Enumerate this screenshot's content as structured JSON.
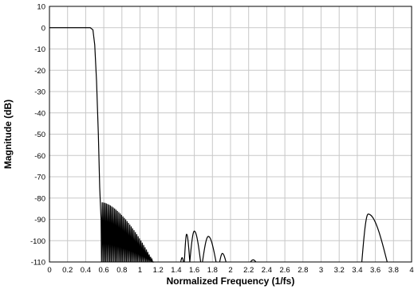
{
  "chart_data": {
    "type": "line",
    "title": "",
    "xlabel": "Normalized Frequency (1/fs)",
    "ylabel": "Magnitude (dB)",
    "xlim": [
      0,
      4
    ],
    "ylim": [
      -110,
      10
    ],
    "grid": true,
    "x_ticks": [
      0,
      0.2,
      0.4,
      0.6,
      0.8,
      1,
      1.2,
      1.4,
      1.6,
      1.8,
      2,
      2.2,
      2.4,
      2.6,
      2.8,
      3,
      3.2,
      3.4,
      3.6,
      3.8,
      4
    ],
    "x_tick_labels": [
      "0",
      "0.2",
      "0.4",
      "0.6",
      "0.8",
      "1",
      "1.2",
      "1.4",
      "1.6",
      "1.8",
      "2",
      "2.2",
      "2.4",
      "2.6",
      "2.8",
      "3",
      "3.2",
      "3.4",
      "3.6",
      "3.8",
      "4"
    ],
    "y_ticks": [
      10,
      0,
      -10,
      -20,
      -30,
      -40,
      -50,
      -60,
      -70,
      -80,
      -90,
      -100,
      -110
    ],
    "y_tick_labels": [
      "10",
      "0",
      "-10",
      "-20",
      "-30",
      "-40",
      "-50",
      "-60",
      "-70",
      "-80",
      "-90",
      "-100",
      "-110"
    ],
    "series": [
      {
        "passband": [
          [
            0,
            0
          ],
          [
            0.2,
            0
          ],
          [
            0.4,
            0
          ],
          [
            0.45,
            0
          ]
        ],
        "transition": [
          [
            0.45,
            0
          ],
          [
            0.48,
            -1
          ],
          [
            0.5,
            -8
          ],
          [
            0.52,
            -25
          ],
          [
            0.54,
            -50
          ],
          [
            0.555,
            -75
          ],
          [
            0.57,
            -90
          ],
          [
            0.575,
            -110
          ]
        ],
        "stopband_lobes": {
          "x_start": 0.575,
          "x_end": 1.155,
          "count": 38,
          "peak_start_db": -82,
          "peak_end_db": -110,
          "floor_db": -110
        },
        "isolated_lobes": [
          {
            "x_start": 1.45,
            "x_end": 1.48,
            "peak_x": 1.465,
            "peak_db": -108
          },
          {
            "x_start": 1.49,
            "x_end": 1.55,
            "peak_x": 1.515,
            "peak_db": -97
          },
          {
            "x_start": 1.55,
            "x_end": 1.67,
            "peak_x": 1.6,
            "peak_db": -95.5
          },
          {
            "x_start": 1.69,
            "x_end": 1.84,
            "peak_x": 1.755,
            "peak_db": -98
          },
          {
            "x_start": 1.88,
            "x_end": 1.95,
            "peak_x": 1.91,
            "peak_db": -106
          },
          {
            "x_start": 2.22,
            "x_end": 2.28,
            "peak_x": 2.25,
            "peak_db": -109
          },
          {
            "x_start": 3.45,
            "x_end": 3.73,
            "peak_x": 3.52,
            "peak_db": -87.5
          }
        ]
      }
    ]
  }
}
